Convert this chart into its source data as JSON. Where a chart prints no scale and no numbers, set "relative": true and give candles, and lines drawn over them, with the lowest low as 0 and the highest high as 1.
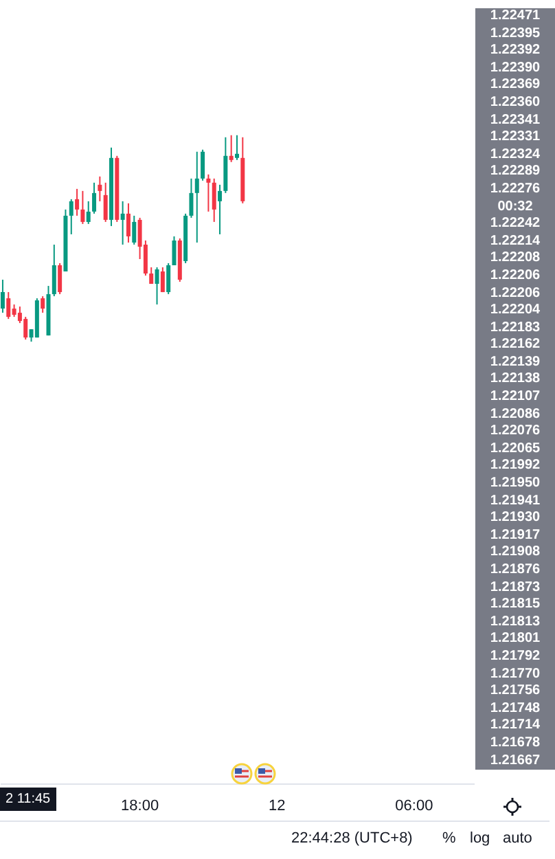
{
  "chart_data": {
    "type": "candlestick",
    "relative": true,
    "categories": [
      null,
      null,
      null,
      null,
      null,
      null,
      null,
      null,
      null,
      null,
      null,
      null,
      null,
      null,
      null,
      null,
      null,
      null,
      null,
      null,
      null,
      null,
      null,
      null,
      "18:00",
      null,
      null,
      null,
      null,
      null,
      null,
      null,
      null,
      null,
      null,
      null,
      null,
      null,
      null,
      null,
      null,
      null,
      null,
      null,
      null,
      null,
      null,
      null,
      "12",
      null,
      null,
      null,
      null,
      null,
      null,
      null,
      null,
      null,
      null,
      null,
      null,
      null,
      null,
      null,
      null,
      null,
      null,
      null,
      null,
      null,
      null,
      null,
      "06:00",
      null,
      null,
      null,
      null,
      null,
      null,
      null,
      null,
      null,
      null
    ],
    "ohlc": [
      [
        0.16,
        0.3,
        0.14,
        0.24
      ],
      [
        0.21,
        0.24,
        0.11,
        0.12
      ],
      [
        0.16,
        0.18,
        0.12,
        0.13
      ],
      [
        0.14,
        0.17,
        0.09,
        0.1
      ],
      [
        0.11,
        0.12,
        0.01,
        0.02
      ],
      [
        0.02,
        0.06,
        0,
        0.06
      ],
      [
        0.02,
        0.21,
        0.02,
        0.2
      ],
      [
        0.21,
        0.22,
        0.14,
        0.16
      ],
      [
        0.03,
        0.27,
        0.03,
        0.23
      ],
      [
        0.23,
        0.47,
        0.22,
        0.37
      ],
      [
        0.37,
        0.38,
        0.23,
        0.24
      ],
      [
        0.34,
        0.64,
        0.34,
        0.61
      ],
      [
        0.61,
        0.69,
        0.52,
        0.68
      ],
      [
        0.69,
        0.74,
        0.61,
        0.64
      ],
      [
        0.64,
        0.73,
        0.57,
        0.58
      ],
      [
        0.58,
        0.68,
        0.57,
        0.63
      ],
      [
        0.63,
        0.77,
        0.62,
        0.72
      ],
      [
        0.76,
        0.8,
        0.68,
        0.73
      ],
      [
        0.71,
        0.77,
        0.58,
        0.59
      ],
      [
        0.59,
        0.94,
        0.56,
        0.89
      ],
      [
        0.89,
        0.9,
        0.58,
        0.59
      ],
      [
        0.59,
        0.68,
        0.47,
        0.62
      ],
      [
        0.62,
        0.67,
        0.48,
        0.51
      ],
      [
        0.48,
        0.61,
        0.47,
        0.58
      ],
      [
        0.59,
        0.6,
        0.4,
        0.46
      ],
      [
        0.47,
        0.49,
        0.32,
        0.33
      ],
      [
        0.33,
        0.36,
        0.28,
        0.28
      ],
      [
        0.28,
        0.36,
        0.18,
        0.35
      ],
      [
        0.34,
        0.36,
        0.24,
        0.24
      ],
      [
        0.24,
        0.38,
        0.23,
        0.37
      ],
      [
        0.37,
        0.51,
        0.37,
        0.49
      ],
      [
        0.49,
        0.5,
        0.29,
        0.3
      ],
      [
        0.39,
        0.62,
        0.38,
        0.61
      ],
      [
        0.61,
        0.79,
        0.6,
        0.72
      ],
      [
        0.72,
        0.92,
        0.48,
        0.79
      ],
      [
        0.79,
        0.93,
        0.78,
        0.92
      ],
      [
        0.79,
        0.81,
        0.63,
        0.77
      ],
      [
        0.77,
        0.79,
        0.58,
        0.64
      ],
      [
        0.68,
        0.76,
        0.52,
        0.73
      ],
      [
        0.73,
        0.99,
        0.72,
        0.9
      ],
      [
        0.9,
        1,
        0.87,
        0.88
      ],
      [
        0.89,
        1,
        0.88,
        0.91
      ],
      [
        0.89,
        0.99,
        0.67,
        0.68
      ],
      null,
      null,
      null,
      null,
      null,
      null,
      null,
      null,
      null,
      null,
      null,
      null,
      null,
      null,
      null,
      null,
      null,
      null,
      null,
      null,
      null,
      null,
      null,
      null,
      null,
      null,
      null,
      null,
      null,
      null,
      null,
      null,
      null,
      null,
      null,
      null,
      null,
      null,
      null,
      null
    ],
    "annotations": [
      "1.22471",
      "1.22395",
      "1.22392",
      "1.22390",
      "1.22369",
      "1.22360",
      "1.22341",
      "1.22331",
      "1.22324",
      "1.22289",
      "1.22276",
      "00:32",
      "1.22242",
      "1.22214",
      "1.22208",
      "1.22206",
      "1.22206",
      "1.22204",
      "1.22183",
      "1.22162",
      "1.22139",
      "1.22138",
      "1.22107",
      "1.22086",
      "1.22076",
      "1.22065",
      "1.21992",
      "1.21950",
      "1.21941",
      "1.21930",
      "1.21917",
      "1.21908",
      "1.21876",
      "1.21873",
      "1.21815",
      "1.21813",
      "1.21801",
      "1.21792",
      "1.21770",
      "1.21756",
      "1.21748",
      "1.21714",
      "1.21678",
      "1.21667",
      "2 11:45",
      "22:44:28 (UTC+8)",
      "%",
      "log",
      "auto"
    ]
  }
}
